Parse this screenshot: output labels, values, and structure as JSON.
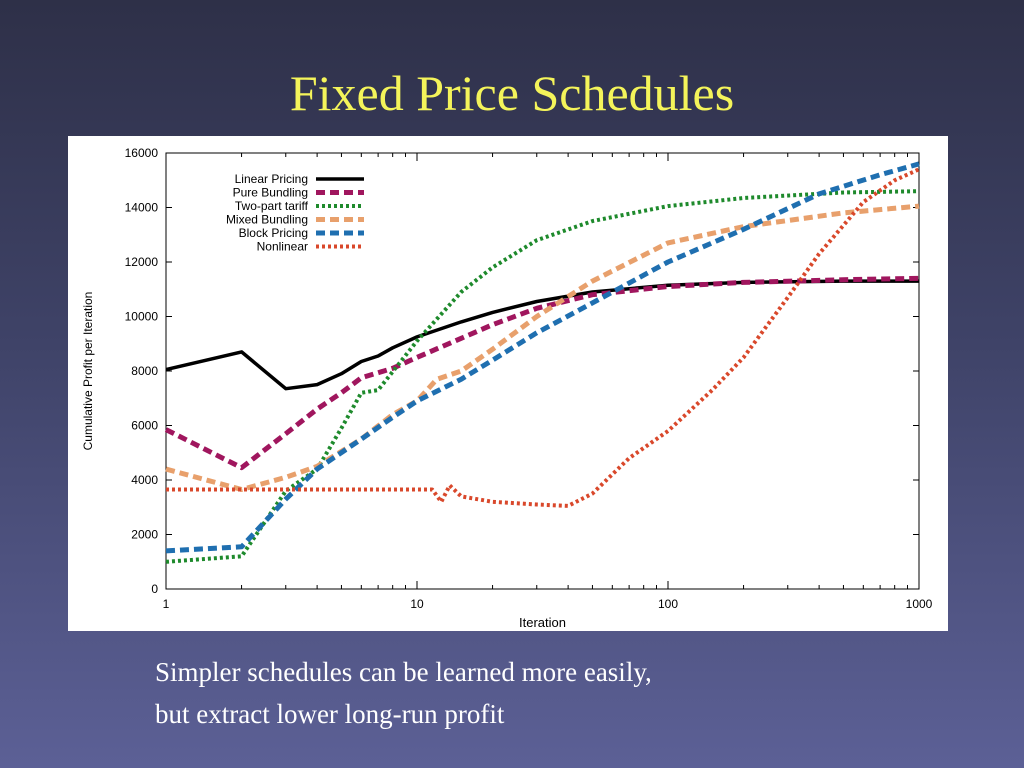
{
  "slide": {
    "title": "Fixed Price Schedules",
    "caption_lines": [
      "Simpler schedules can be learned more easily,",
      "but extract lower long-run profit"
    ]
  },
  "chart_data": {
    "type": "line",
    "title": "",
    "xlabel": "Iteration",
    "ylabel": "Cumulative Profit per Iteration",
    "x_scale": "log",
    "xlim": [
      1,
      1000
    ],
    "ylim": [
      0,
      16000
    ],
    "x_ticks": [
      1,
      10,
      100,
      1000
    ],
    "x_tick_labels": [
      "1",
      "10",
      "100",
      "1000"
    ],
    "y_ticks": [
      0,
      2000,
      4000,
      6000,
      8000,
      10000,
      12000,
      14000,
      16000
    ],
    "y_tick_labels": [
      "0",
      "2000",
      "4000",
      "6000",
      "8000",
      "10000",
      "12000",
      "14000",
      "16000"
    ],
    "grid": false,
    "legend_position": "top-left",
    "series": [
      {
        "name": "Linear Pricing",
        "color": "#000000",
        "dash": "solid",
        "points": [
          [
            1,
            8050
          ],
          [
            2,
            8700
          ],
          [
            3,
            7350
          ],
          [
            4,
            7500
          ],
          [
            5,
            7900
          ],
          [
            6,
            8350
          ],
          [
            7,
            8550
          ],
          [
            8,
            8850
          ],
          [
            10,
            9250
          ],
          [
            15,
            9800
          ],
          [
            20,
            10150
          ],
          [
            30,
            10550
          ],
          [
            50,
            10900
          ],
          [
            100,
            11150
          ],
          [
            200,
            11250
          ],
          [
            500,
            11300
          ],
          [
            1000,
            11300
          ]
        ]
      },
      {
        "name": "Pure Bundling",
        "color": "#a0165e",
        "dash": "dashed",
        "points": [
          [
            1,
            5850
          ],
          [
            2,
            4450
          ],
          [
            3,
            5700
          ],
          [
            4,
            6600
          ],
          [
            5,
            7200
          ],
          [
            6,
            7750
          ],
          [
            8,
            8100
          ],
          [
            10,
            8500
          ],
          [
            15,
            9200
          ],
          [
            20,
            9700
          ],
          [
            30,
            10300
          ],
          [
            50,
            10800
          ],
          [
            100,
            11100
          ],
          [
            200,
            11250
          ],
          [
            500,
            11350
          ],
          [
            1000,
            11400
          ]
        ]
      },
      {
        "name": "Two-part tariff",
        "color": "#1e8a2c",
        "dash": "dotted",
        "points": [
          [
            1,
            1000
          ],
          [
            2,
            1200
          ],
          [
            3,
            3600
          ],
          [
            4,
            4400
          ],
          [
            5,
            5900
          ],
          [
            6,
            7200
          ],
          [
            7,
            7300
          ],
          [
            10,
            9100
          ],
          [
            15,
            10900
          ],
          [
            20,
            11800
          ],
          [
            30,
            12800
          ],
          [
            50,
            13500
          ],
          [
            100,
            14050
          ],
          [
            200,
            14350
          ],
          [
            500,
            14550
          ],
          [
            1000,
            14600
          ]
        ]
      },
      {
        "name": "Mixed Bundling",
        "color": "#e8a06c",
        "dash": "dashed",
        "points": [
          [
            1,
            4400
          ],
          [
            2,
            3650
          ],
          [
            3,
            4100
          ],
          [
            4,
            4500
          ],
          [
            6,
            5500
          ],
          [
            8,
            6400
          ],
          [
            10,
            6900
          ],
          [
            12,
            7700
          ],
          [
            15,
            8000
          ],
          [
            20,
            8800
          ],
          [
            30,
            10000
          ],
          [
            50,
            11300
          ],
          [
            100,
            12700
          ],
          [
            200,
            13300
          ],
          [
            500,
            13800
          ],
          [
            1000,
            14050
          ]
        ]
      },
      {
        "name": "Block Pricing",
        "color": "#1f6fb0",
        "dash": "dashed",
        "points": [
          [
            1,
            1400
          ],
          [
            2,
            1550
          ],
          [
            3,
            3300
          ],
          [
            4,
            4400
          ],
          [
            6,
            5500
          ],
          [
            8,
            6300
          ],
          [
            10,
            6900
          ],
          [
            15,
            7700
          ],
          [
            20,
            8400
          ],
          [
            30,
            9400
          ],
          [
            50,
            10500
          ],
          [
            100,
            12000
          ],
          [
            200,
            13200
          ],
          [
            400,
            14500
          ],
          [
            700,
            15200
          ],
          [
            1000,
            15600
          ]
        ]
      },
      {
        "name": "Nonlinear",
        "color": "#d9482b",
        "dash": "dotted",
        "points": [
          [
            1,
            3650
          ],
          [
            5,
            3650
          ],
          [
            10,
            3650
          ],
          [
            11.5,
            3650
          ],
          [
            12.5,
            3200
          ],
          [
            13.5,
            3800
          ],
          [
            15,
            3400
          ],
          [
            20,
            3200
          ],
          [
            30,
            3100
          ],
          [
            40,
            3050
          ],
          [
            50,
            3500
          ],
          [
            70,
            4800
          ],
          [
            100,
            5800
          ],
          [
            150,
            7300
          ],
          [
            200,
            8500
          ],
          [
            300,
            10700
          ],
          [
            400,
            12300
          ],
          [
            600,
            14200
          ],
          [
            800,
            15000
          ],
          [
            1000,
            15400
          ]
        ]
      }
    ]
  }
}
